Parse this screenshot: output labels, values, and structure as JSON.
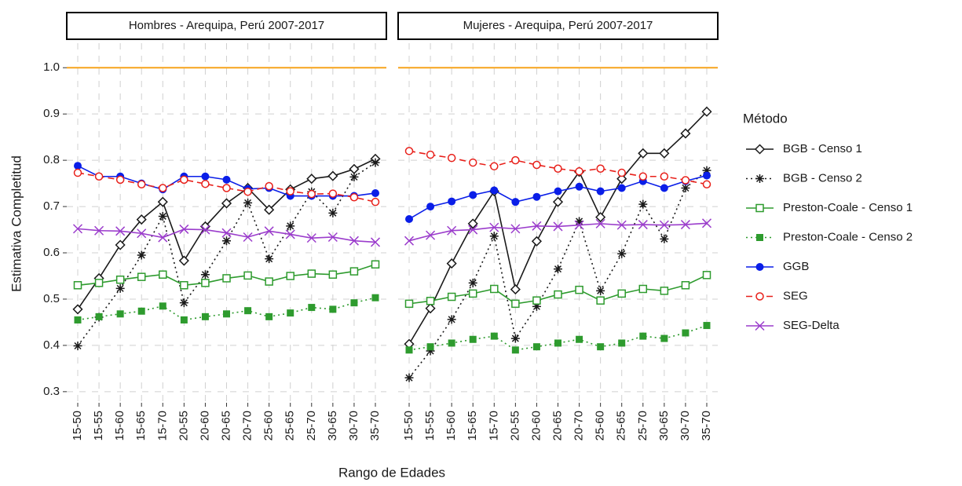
{
  "chart_data": [
    {
      "type": "line",
      "title": "Hombres - Arequipa, Perú 2007-2017",
      "ylabel": "Estimativa Completitud",
      "xlabel": "Rango de Edades",
      "legend_title": "Método",
      "legend": "right",
      "grid": true,
      "hline": 1,
      "hline_color": "#f7a41d",
      "categories": [
        "15-50",
        "15-55",
        "15-60",
        "15-65",
        "15-70",
        "20-55",
        "20-60",
        "20-65",
        "20-70",
        "25-60",
        "25-65",
        "25-70",
        "30-65",
        "30-70",
        "35-70"
      ],
      "ylim": [
        0.276,
        1.053
      ],
      "yticks": [
        0.3,
        0.4,
        0.5,
        0.6,
        0.7,
        0.8,
        0.9,
        {
          "value": 1,
          "label": "1.0"
        }
      ],
      "series": [
        {
          "name": "BGB - Censo 1",
          "color": "#1a1a1a",
          "marker": "diamond-open",
          "linestyle": "solid",
          "values": [
            0.478,
            0.545,
            0.617,
            0.672,
            0.71,
            0.583,
            0.657,
            0.707,
            0.74,
            0.693,
            0.737,
            0.76,
            0.766,
            0.781,
            0.803
          ]
        },
        {
          "name": "BGB - Censo 2",
          "color": "#1a1a1a",
          "marker": "star",
          "linestyle": "dotted",
          "values": [
            0.399,
            0.461,
            0.523,
            0.595,
            0.679,
            0.492,
            0.553,
            0.626,
            0.708,
            0.587,
            0.658,
            0.732,
            0.686,
            0.764,
            0.795
          ]
        },
        {
          "name": "Preston-Coale - Censo 1",
          "color": "#2e9b2e",
          "marker": "square-open",
          "linestyle": "solid",
          "values": [
            0.53,
            0.535,
            0.542,
            0.548,
            0.553,
            0.53,
            0.535,
            0.545,
            0.551,
            0.538,
            0.55,
            0.555,
            0.553,
            0.56,
            0.575
          ]
        },
        {
          "name": "Preston-Coale - Censo 2",
          "color": "#2e9b2e",
          "marker": "square",
          "linestyle": "dotted",
          "values": [
            0.455,
            0.462,
            0.468,
            0.474,
            0.485,
            0.455,
            0.462,
            0.468,
            0.475,
            0.462,
            0.47,
            0.482,
            0.478,
            0.492,
            0.503
          ]
        },
        {
          "name": "GGB",
          "color": "#0a1ee8",
          "marker": "circle",
          "linestyle": "solid",
          "values": [
            0.788,
            0.765,
            0.765,
            0.75,
            0.737,
            0.765,
            0.765,
            0.758,
            0.738,
            0.74,
            0.723,
            0.723,
            0.723,
            0.723,
            0.729
          ]
        },
        {
          "name": "SEG",
          "color": "#e8201a",
          "marker": "circle-open",
          "linestyle": "dashed",
          "values": [
            0.773,
            0.765,
            0.758,
            0.748,
            0.74,
            0.758,
            0.749,
            0.74,
            0.732,
            0.744,
            0.733,
            0.727,
            0.728,
            0.72,
            0.71
          ]
        },
        {
          "name": "SEG-Delta",
          "color": "#9b3dcc",
          "marker": "x",
          "linestyle": "solid",
          "values": [
            0.652,
            0.648,
            0.647,
            0.642,
            0.633,
            0.651,
            0.65,
            0.643,
            0.634,
            0.647,
            0.64,
            0.632,
            0.634,
            0.626,
            0.623
          ]
        }
      ]
    },
    {
      "type": "line",
      "title": "Mujeres - Arequipa, Perú 2007-2017",
      "grid": true,
      "hline": 1,
      "categories": [
        "15-50",
        "15-55",
        "15-60",
        "15-65",
        "15-70",
        "20-55",
        "20-60",
        "20-65",
        "20-70",
        "25-60",
        "25-65",
        "25-70",
        "30-65",
        "30-70",
        "35-70"
      ],
      "ylim": [
        0.276,
        1.053
      ],
      "yticks": [
        0.3,
        0.4,
        0.5,
        0.6,
        0.7,
        0.8,
        0.9,
        1
      ],
      "series": [
        {
          "values": [
            0.403,
            0.48,
            0.577,
            0.663,
            0.733,
            0.521,
            0.625,
            0.71,
            0.775,
            0.677,
            0.76,
            0.815,
            0.815,
            0.858,
            0.905
          ]
        },
        {
          "values": [
            0.33,
            0.388,
            0.456,
            0.535,
            0.636,
            0.415,
            0.484,
            0.565,
            0.668,
            0.518,
            0.598,
            0.705,
            0.63,
            0.74,
            0.778
          ]
        },
        {
          "values": [
            0.49,
            0.496,
            0.505,
            0.512,
            0.522,
            0.49,
            0.497,
            0.51,
            0.52,
            0.497,
            0.512,
            0.522,
            0.518,
            0.53,
            0.552
          ]
        },
        {
          "values": [
            0.39,
            0.397,
            0.405,
            0.413,
            0.42,
            0.39,
            0.397,
            0.405,
            0.413,
            0.397,
            0.405,
            0.42,
            0.415,
            0.427,
            0.443
          ]
        },
        {
          "values": [
            0.673,
            0.7,
            0.711,
            0.725,
            0.735,
            0.71,
            0.721,
            0.733,
            0.743,
            0.733,
            0.74,
            0.755,
            0.74,
            0.755,
            0.767
          ]
        },
        {
          "values": [
            0.82,
            0.812,
            0.805,
            0.795,
            0.787,
            0.8,
            0.79,
            0.782,
            0.776,
            0.782,
            0.773,
            0.765,
            0.765,
            0.757,
            0.748
          ]
        },
        {
          "values": [
            0.626,
            0.638,
            0.648,
            0.65,
            0.655,
            0.652,
            0.658,
            0.657,
            0.66,
            0.663,
            0.66,
            0.661,
            0.66,
            0.661,
            0.664
          ]
        }
      ]
    }
  ]
}
